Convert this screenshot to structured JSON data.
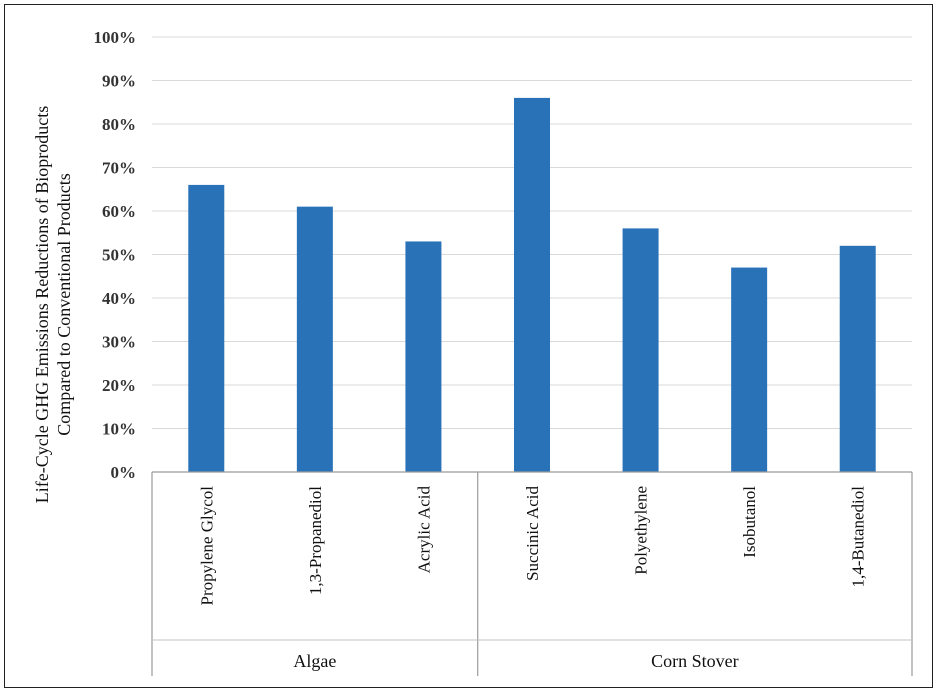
{
  "chart_data": {
    "type": "bar",
    "categories": [
      "Propylene Glycol",
      "1,3-Propanediol",
      "Acrylic Acid",
      "Succinic Acid",
      "Polyethylene",
      "Isobutanol",
      "1,4-Butanediol"
    ],
    "groups": [
      {
        "label": "Algae",
        "categories": [
          "Propylene Glycol",
          "1,3-Propanediol",
          "Acrylic Acid"
        ]
      },
      {
        "label": "Corn Stover",
        "categories": [
          "Succinic Acid",
          "Polyethylene",
          "Isobutanol",
          "1,4-Butanediol"
        ]
      }
    ],
    "values": [
      0.66,
      0.61,
      0.53,
      0.86,
      0.56,
      0.47,
      0.52
    ],
    "ylabel_line1": "Life-Cycle GHG Emissions Reductions of Bioproducts",
    "ylabel_line2": "Compared to Conventional Products",
    "ylim": [
      0,
      1
    ],
    "yticks": [
      0,
      0.1,
      0.2,
      0.3,
      0.4,
      0.5,
      0.6,
      0.7,
      0.8,
      0.9,
      1.0
    ],
    "ytick_labels": [
      "0%",
      "10%",
      "20%",
      "30%",
      "40%",
      "50%",
      "60%",
      "70%",
      "80%",
      "90%",
      "100%"
    ],
    "grid": true,
    "bar_color": "#2a72b8"
  }
}
